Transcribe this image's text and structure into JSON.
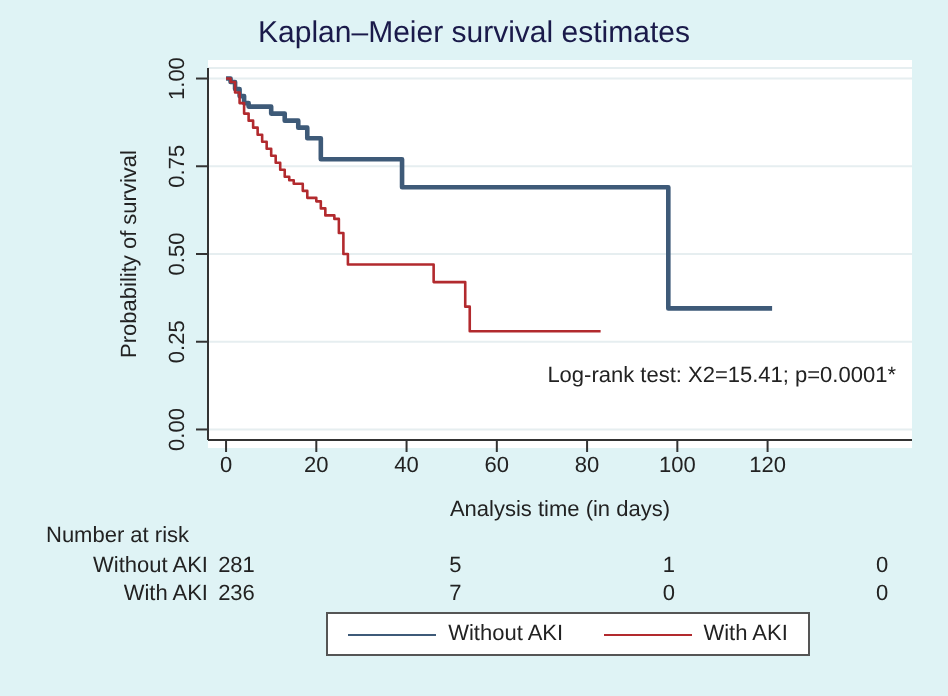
{
  "chart_data": {
    "type": "step",
    "title": "Kaplan–Meier survival estimates",
    "xlabel": "Analysis time (in days)",
    "ylabel": "Probability of survival",
    "xlim": [
      -4,
      152
    ],
    "xticks": [
      0,
      20,
      40,
      60,
      80,
      100,
      120
    ],
    "ylim": [
      -0.03,
      1.03
    ],
    "yticks": [
      {
        "value": 0,
        "label": "0.00"
      },
      {
        "value": 0.25,
        "label": "0.25"
      },
      {
        "value": 0.5,
        "label": "0.50"
      },
      {
        "value": 0.75,
        "label": "0.75"
      },
      {
        "value": 1,
        "label": "1.00"
      }
    ],
    "grid": "y",
    "legend": "bottom",
    "marker": "none",
    "line_style": "solid",
    "series": [
      {
        "name": "Without AKI",
        "color": "#3e5a78",
        "x": [
          0,
          1,
          2,
          3,
          4,
          5,
          10,
          13,
          16,
          18,
          21,
          39,
          98,
          121
        ],
        "values": [
          1,
          0.99,
          0.97,
          0.95,
          0.93,
          0.92,
          0.9,
          0.88,
          0.86,
          0.83,
          0.77,
          0.69,
          0.345,
          0.345
        ]
      },
      {
        "name": "With AKI",
        "color": "#b22a2e",
        "x": [
          0,
          1,
          2,
          3,
          4,
          5,
          6,
          7,
          8,
          9,
          10,
          11,
          12,
          13,
          14,
          15,
          17,
          18,
          20,
          21,
          22,
          24,
          25,
          26,
          27,
          46,
          53,
          54,
          83
        ],
        "values": [
          1,
          0.99,
          0.96,
          0.93,
          0.9,
          0.88,
          0.86,
          0.84,
          0.82,
          0.8,
          0.78,
          0.76,
          0.74,
          0.72,
          0.71,
          0.7,
          0.68,
          0.66,
          0.65,
          0.63,
          0.61,
          0.6,
          0.56,
          0.5,
          0.47,
          0.42,
          0.35,
          0.28,
          0.28
        ]
      }
    ],
    "annotations": [
      "Log-rank test: X2=15.41; p=0.0001*",
      "Number at risk",
      "Without AKI",
      "281",
      "5",
      "1",
      "0",
      "With AKI",
      "236",
      "7",
      "0",
      "0"
    ]
  }
}
